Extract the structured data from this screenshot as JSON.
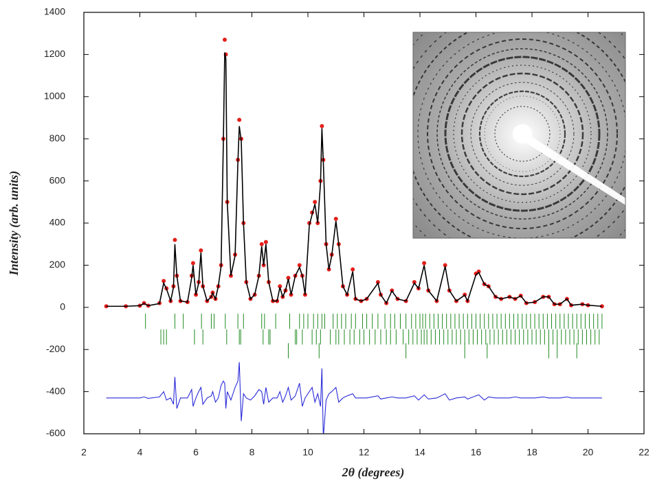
{
  "chart_data": {
    "type": "rietveld",
    "xlabel": "2θ (degrees)",
    "ylabel": "Intensity (arb. units)",
    "xlim": [
      2,
      22
    ],
    "xticks": [
      2,
      4,
      6,
      8,
      10,
      12,
      14,
      16,
      18,
      20,
      22
    ],
    "ylim": [
      -600,
      1400
    ],
    "yticks": [
      -600,
      -400,
      -200,
      0,
      200,
      400,
      600,
      800,
      1000,
      1200,
      1400
    ],
    "x": [
      2.8,
      3.5,
      4.0,
      4.15,
      4.3,
      4.7,
      4.85,
      4.95,
      5.1,
      5.2,
      5.25,
      5.32,
      5.45,
      5.7,
      5.85,
      5.9,
      6.0,
      6.1,
      6.18,
      6.25,
      6.4,
      6.55,
      6.6,
      6.7,
      6.8,
      6.9,
      6.98,
      7.03,
      7.07,
      7.12,
      7.25,
      7.4,
      7.5,
      7.55,
      7.62,
      7.7,
      7.8,
      7.95,
      8.1,
      8.25,
      8.35,
      8.42,
      8.5,
      8.6,
      8.75,
      8.9,
      9.0,
      9.1,
      9.2,
      9.3,
      9.4,
      9.55,
      9.7,
      9.8,
      9.9,
      10.05,
      10.15,
      10.25,
      10.35,
      10.45,
      10.5,
      10.55,
      10.65,
      10.75,
      10.85,
      11.0,
      11.1,
      11.25,
      11.4,
      11.6,
      11.7,
      11.9,
      12.1,
      12.5,
      12.6,
      12.8,
      13.0,
      13.2,
      13.5,
      13.8,
      13.95,
      14.15,
      14.3,
      14.6,
      14.9,
      15.05,
      15.3,
      15.6,
      15.7,
      16.0,
      16.1,
      16.3,
      16.45,
      16.7,
      16.9,
      17.2,
      17.4,
      17.6,
      17.8,
      18.1,
      18.4,
      18.6,
      18.8,
      19.0,
      19.25,
      19.4,
      19.8,
      20.0,
      20.5
    ],
    "series": [
      {
        "color": "#e3201b",
        "marker": "circle",
        "values": [
          5,
          5,
          8,
          20,
          8,
          20,
          125,
          90,
          30,
          100,
          320,
          150,
          30,
          25,
          150,
          210,
          60,
          120,
          270,
          100,
          30,
          50,
          70,
          40,
          100,
          200,
          800,
          1270,
          1200,
          500,
          150,
          250,
          700,
          890,
          800,
          400,
          120,
          40,
          60,
          150,
          300,
          200,
          310,
          120,
          30,
          30,
          100,
          50,
          80,
          140,
          60,
          150,
          200,
          150,
          60,
          400,
          450,
          500,
          400,
          600,
          860,
          700,
          300,
          180,
          250,
          420,
          300,
          100,
          60,
          180,
          40,
          30,
          40,
          120,
          60,
          20,
          80,
          40,
          30,
          120,
          90,
          210,
          80,
          30,
          200,
          80,
          30,
          60,
          30,
          160,
          170,
          110,
          100,
          50,
          40,
          50,
          40,
          55,
          20,
          25,
          50,
          50,
          15,
          15,
          40,
          10,
          15,
          10,
          5
        ]
      },
      {
        "color": "#000000",
        "marker": "line",
        "values": [
          5,
          5,
          8,
          18,
          8,
          18,
          115,
          88,
          30,
          95,
          300,
          150,
          30,
          25,
          140,
          200,
          60,
          115,
          260,
          100,
          30,
          50,
          68,
          40,
          100,
          195,
          780,
          1210,
          1180,
          500,
          150,
          245,
          690,
          860,
          790,
          400,
          120,
          40,
          60,
          150,
          290,
          200,
          300,
          120,
          30,
          30,
          95,
          50,
          80,
          135,
          60,
          150,
          190,
          150,
          60,
          390,
          440,
          490,
          400,
          590,
          850,
          690,
          300,
          180,
          245,
          410,
          300,
          100,
          60,
          170,
          40,
          30,
          40,
          115,
          60,
          20,
          78,
          40,
          30,
          115,
          90,
          200,
          80,
          30,
          195,
          80,
          30,
          58,
          30,
          155,
          165,
          110,
          100,
          50,
          40,
          50,
          40,
          55,
          20,
          25,
          50,
          50,
          15,
          15,
          40,
          10,
          15,
          10,
          5
        ]
      },
      {
        "color": "#2a2ad8",
        "marker": "line",
        "values": [
          -430,
          -430,
          -430,
          -425,
          -432,
          -425,
          -400,
          -440,
          -430,
          -460,
          -330,
          -480,
          -430,
          -430,
          -390,
          -470,
          -430,
          -400,
          -380,
          -460,
          -430,
          -420,
          -400,
          -450,
          -430,
          -370,
          -350,
          -360,
          -480,
          -400,
          -440,
          -380,
          -350,
          -260,
          -540,
          -410,
          -430,
          -440,
          -420,
          -390,
          -400,
          -460,
          -380,
          -450,
          -430,
          -430,
          -400,
          -450,
          -420,
          -380,
          -440,
          -420,
          -360,
          -470,
          -430,
          -400,
          -380,
          -450,
          -410,
          -470,
          -290,
          -620,
          -440,
          -410,
          -400,
          -380,
          -450,
          -430,
          -420,
          -410,
          -430,
          -430,
          -430,
          -420,
          -435,
          -430,
          -425,
          -430,
          -430,
          -420,
          -440,
          -415,
          -435,
          -430,
          -410,
          -440,
          -430,
          -425,
          -435,
          -420,
          -415,
          -440,
          -425,
          -430,
          -430,
          -430,
          -425,
          -430,
          -430,
          -430,
          -425,
          -430,
          -430,
          -430,
          -425,
          -430,
          -430,
          -430,
          -430
        ]
      }
    ],
    "reflections": [
      {
        "color": "#1f8a1f",
        "x": [
          4.2,
          5.25,
          5.55,
          6.2,
          6.55,
          6.65,
          7.05,
          7.5,
          7.7,
          8.35,
          8.45,
          8.85,
          9.35,
          9.7,
          9.85,
          10.0,
          10.2,
          10.35,
          10.5,
          10.6,
          10.9,
          11.05,
          11.2,
          11.35,
          11.55,
          11.7,
          11.95,
          12.1,
          12.3,
          12.5,
          12.75,
          12.95,
          13.1,
          13.3,
          13.5,
          13.7,
          13.85,
          14.0,
          14.1,
          14.2,
          14.35,
          14.5,
          14.65,
          14.8,
          14.95,
          15.1,
          15.25,
          15.4,
          15.55,
          15.7,
          15.85,
          16.0,
          16.15,
          16.3,
          16.45,
          16.6,
          16.75,
          16.9,
          17.05,
          17.2,
          17.35,
          17.5,
          17.65,
          17.8,
          17.95,
          18.1,
          18.25,
          18.4,
          18.55,
          18.7,
          18.85,
          19.0,
          19.15,
          19.3,
          19.45,
          19.6,
          19.75,
          19.9,
          20.05,
          20.2,
          20.35,
          20.5
        ]
      },
      {
        "color": "#1f8a1f",
        "x": [
          4.75,
          4.85,
          4.95,
          5.95,
          6.25,
          7.1,
          7.55,
          7.6,
          8.4,
          8.6,
          8.65,
          9.55,
          9.6,
          9.8,
          10.15,
          10.3,
          10.45,
          10.8,
          11.0,
          11.1,
          11.3,
          11.5,
          11.65,
          11.85,
          12.0,
          12.2,
          12.4,
          12.6,
          12.8,
          12.95,
          13.15,
          13.4,
          13.6,
          13.75,
          13.9,
          14.05,
          14.15,
          14.25,
          14.4,
          14.55,
          14.7,
          14.85,
          15.0,
          15.15,
          15.3,
          15.45,
          15.6,
          15.75,
          15.9,
          16.05,
          16.2,
          16.35,
          16.5,
          16.65,
          16.8,
          16.95,
          17.1,
          17.25,
          17.4,
          17.55,
          17.7,
          17.85,
          18.0,
          18.15,
          18.3,
          18.45,
          18.6,
          18.75,
          18.9,
          19.05,
          19.2,
          19.35,
          19.5,
          19.65,
          19.8,
          19.95,
          20.1,
          20.25,
          20.4
        ]
      },
      {
        "color": "#1f8a1f",
        "x": [
          9.3,
          10.4,
          13.5,
          15.6,
          16.4,
          18.6,
          18.9,
          19.6
        ]
      }
    ]
  }
}
